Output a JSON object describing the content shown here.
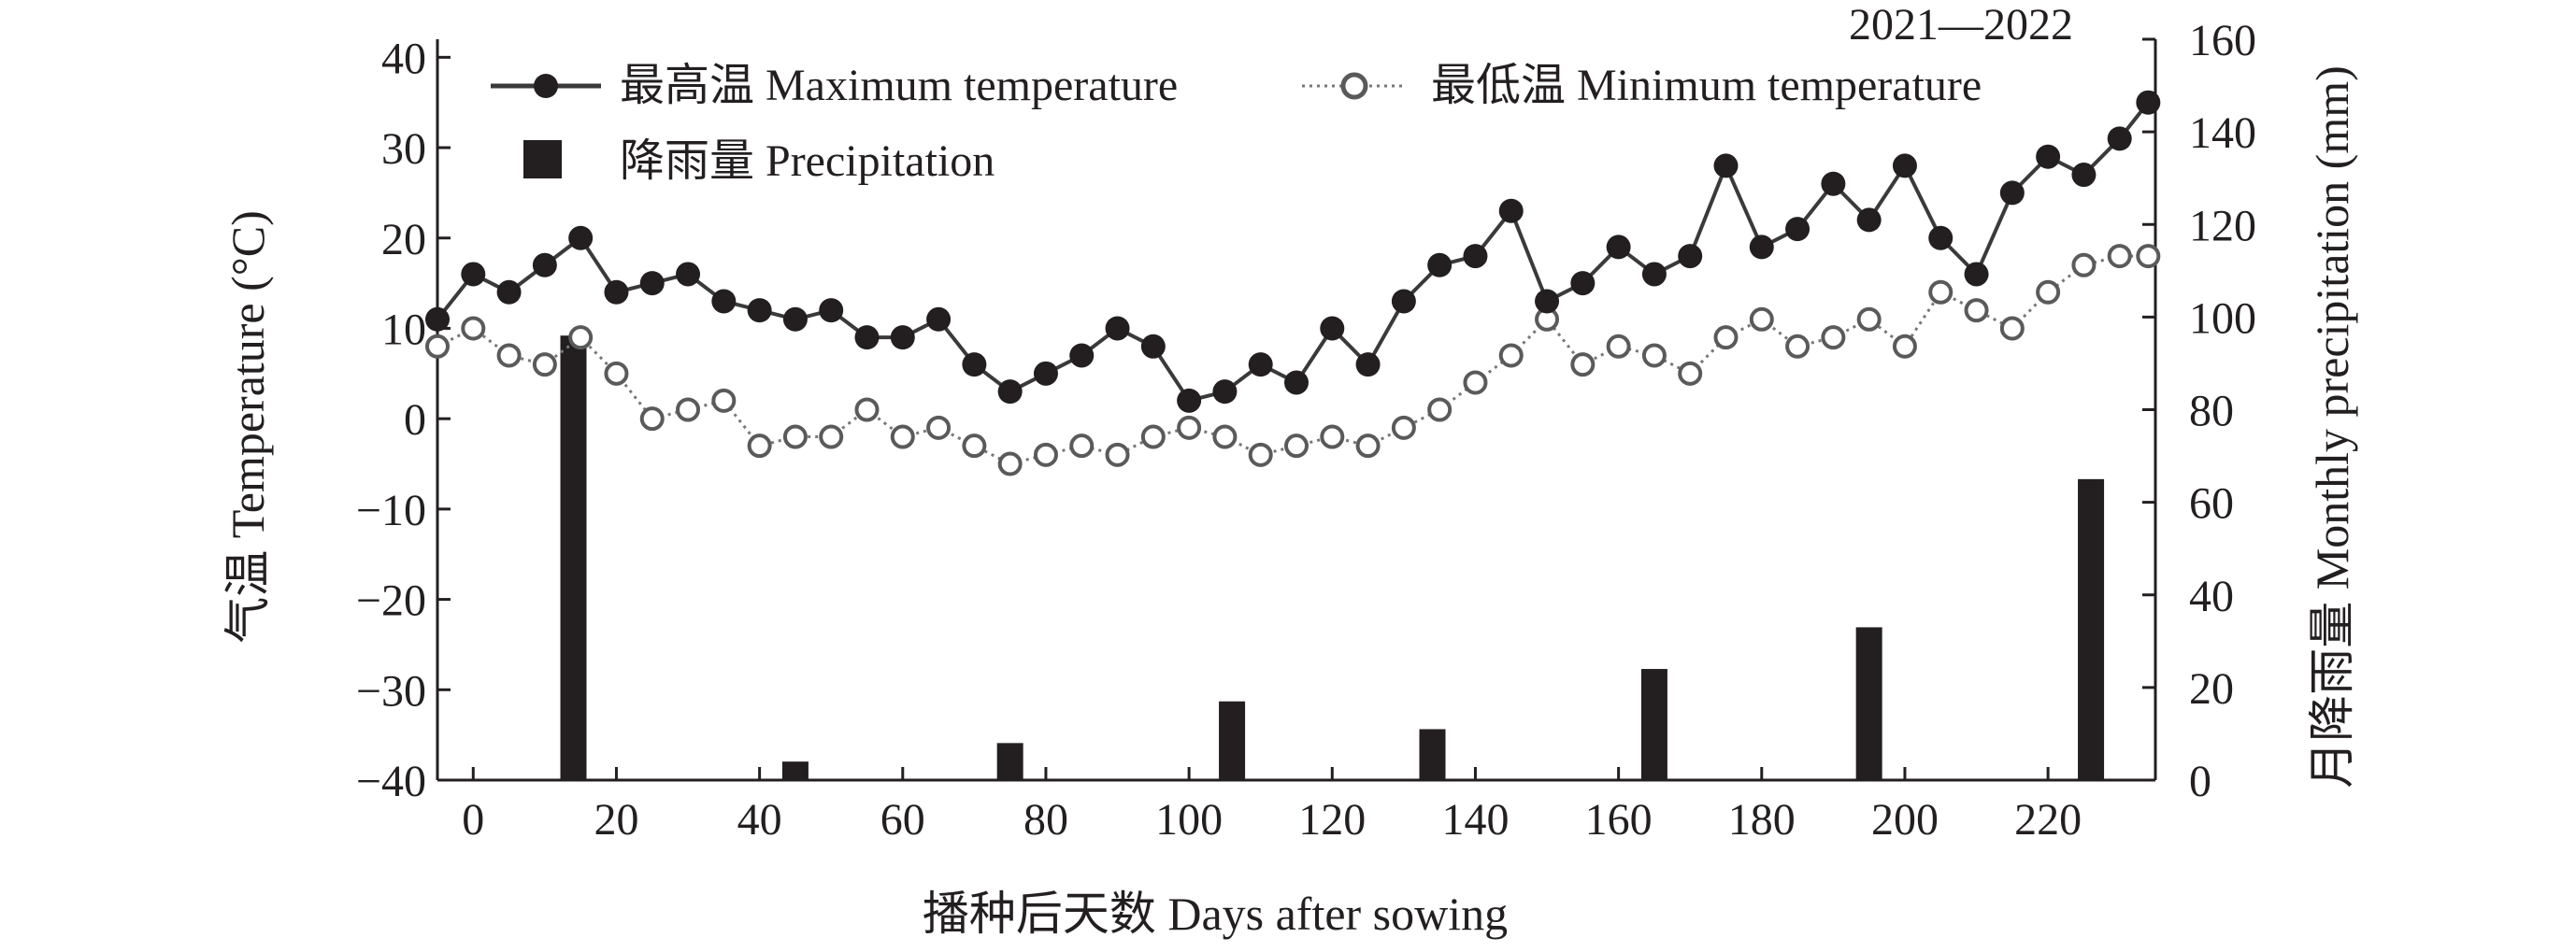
{
  "chart_data": {
    "type": "bar+line",
    "period_label": "2021—2022",
    "xlabel": "播种后天数 Days after sowing",
    "ylabel_left": "气温 Temperature (°C)",
    "ylabel_right": "月降雨量 Monthly precipitation (mm)",
    "xlim": [
      -5,
      235
    ],
    "ylim_left": [
      -40,
      42
    ],
    "ylim_right": [
      0,
      160
    ],
    "x_ticks": [
      0,
      20,
      40,
      60,
      80,
      100,
      120,
      140,
      160,
      180,
      200,
      220
    ],
    "y_left_ticks": [
      40,
      30,
      20,
      10,
      0,
      -10,
      -20,
      -30,
      -40
    ],
    "y_right_ticks": [
      160,
      140,
      120,
      100,
      80,
      60,
      40,
      20,
      0
    ],
    "y_left_tick_labels": [
      "40",
      "30",
      "20",
      "10",
      "0",
      "−10",
      "−20",
      "−30",
      "−40"
    ],
    "y_right_tick_labels": [
      "160",
      "140",
      "120",
      "100",
      "80",
      "60",
      "40",
      "20",
      "0"
    ],
    "grid": false,
    "legend_position": "top-left",
    "legend": {
      "max": "最高温 Maximum temperature",
      "min": "最低温 Minimum temperature",
      "precip": "降雨量 Precipitation"
    },
    "series": [
      {
        "name": "最高温 Maximum temperature",
        "type": "line",
        "axis": "left",
        "x": [
          -5,
          0,
          5,
          10,
          15,
          20,
          25,
          30,
          35,
          40,
          45,
          50,
          55,
          60,
          65,
          70,
          75,
          80,
          85,
          90,
          95,
          100,
          105,
          110,
          115,
          120,
          125,
          130,
          135,
          140,
          145,
          150,
          155,
          160,
          165,
          170,
          175,
          180,
          185,
          190,
          195,
          200,
          205,
          210,
          215,
          220,
          225,
          230,
          234
        ],
        "y": [
          11,
          16,
          14,
          17,
          20,
          14,
          15,
          16,
          13,
          12,
          11,
          12,
          9,
          9,
          11,
          6,
          3,
          5,
          7,
          10,
          8,
          2,
          3,
          6,
          4,
          10,
          6,
          13,
          17,
          18,
          23,
          13,
          15,
          19,
          16,
          18,
          28,
          19,
          21,
          26,
          22,
          28,
          20,
          16,
          25,
          29,
          27,
          31,
          35
        ]
      },
      {
        "name": "最低温 Minimum temperature",
        "type": "line",
        "axis": "left",
        "x": [
          -5,
          0,
          5,
          10,
          15,
          20,
          25,
          30,
          35,
          40,
          45,
          50,
          55,
          60,
          65,
          70,
          75,
          80,
          85,
          90,
          95,
          100,
          105,
          110,
          115,
          120,
          125,
          130,
          135,
          140,
          145,
          150,
          155,
          160,
          165,
          170,
          175,
          180,
          185,
          190,
          195,
          200,
          205,
          210,
          215,
          220,
          225,
          230,
          234
        ],
        "y": [
          8,
          10,
          7,
          6,
          9,
          5,
          0,
          1,
          2,
          -3,
          -2,
          -2,
          1,
          -2,
          -1,
          -3,
          -5,
          -4,
          -3,
          -4,
          -2,
          -1,
          -2,
          -4,
          -3,
          -2,
          -3,
          -1,
          1,
          4,
          7,
          11,
          6,
          8,
          7,
          5,
          9,
          11,
          8,
          9,
          11,
          8,
          14,
          12,
          10,
          14,
          17,
          18,
          18
        ]
      },
      {
        "name": "降雨量 Precipitation",
        "type": "bar",
        "axis": "right",
        "x": [
          14,
          45,
          75,
          106,
          134,
          165,
          195,
          226
        ],
        "y": [
          96,
          4,
          8,
          17,
          11,
          24,
          33,
          65
        ]
      }
    ]
  }
}
